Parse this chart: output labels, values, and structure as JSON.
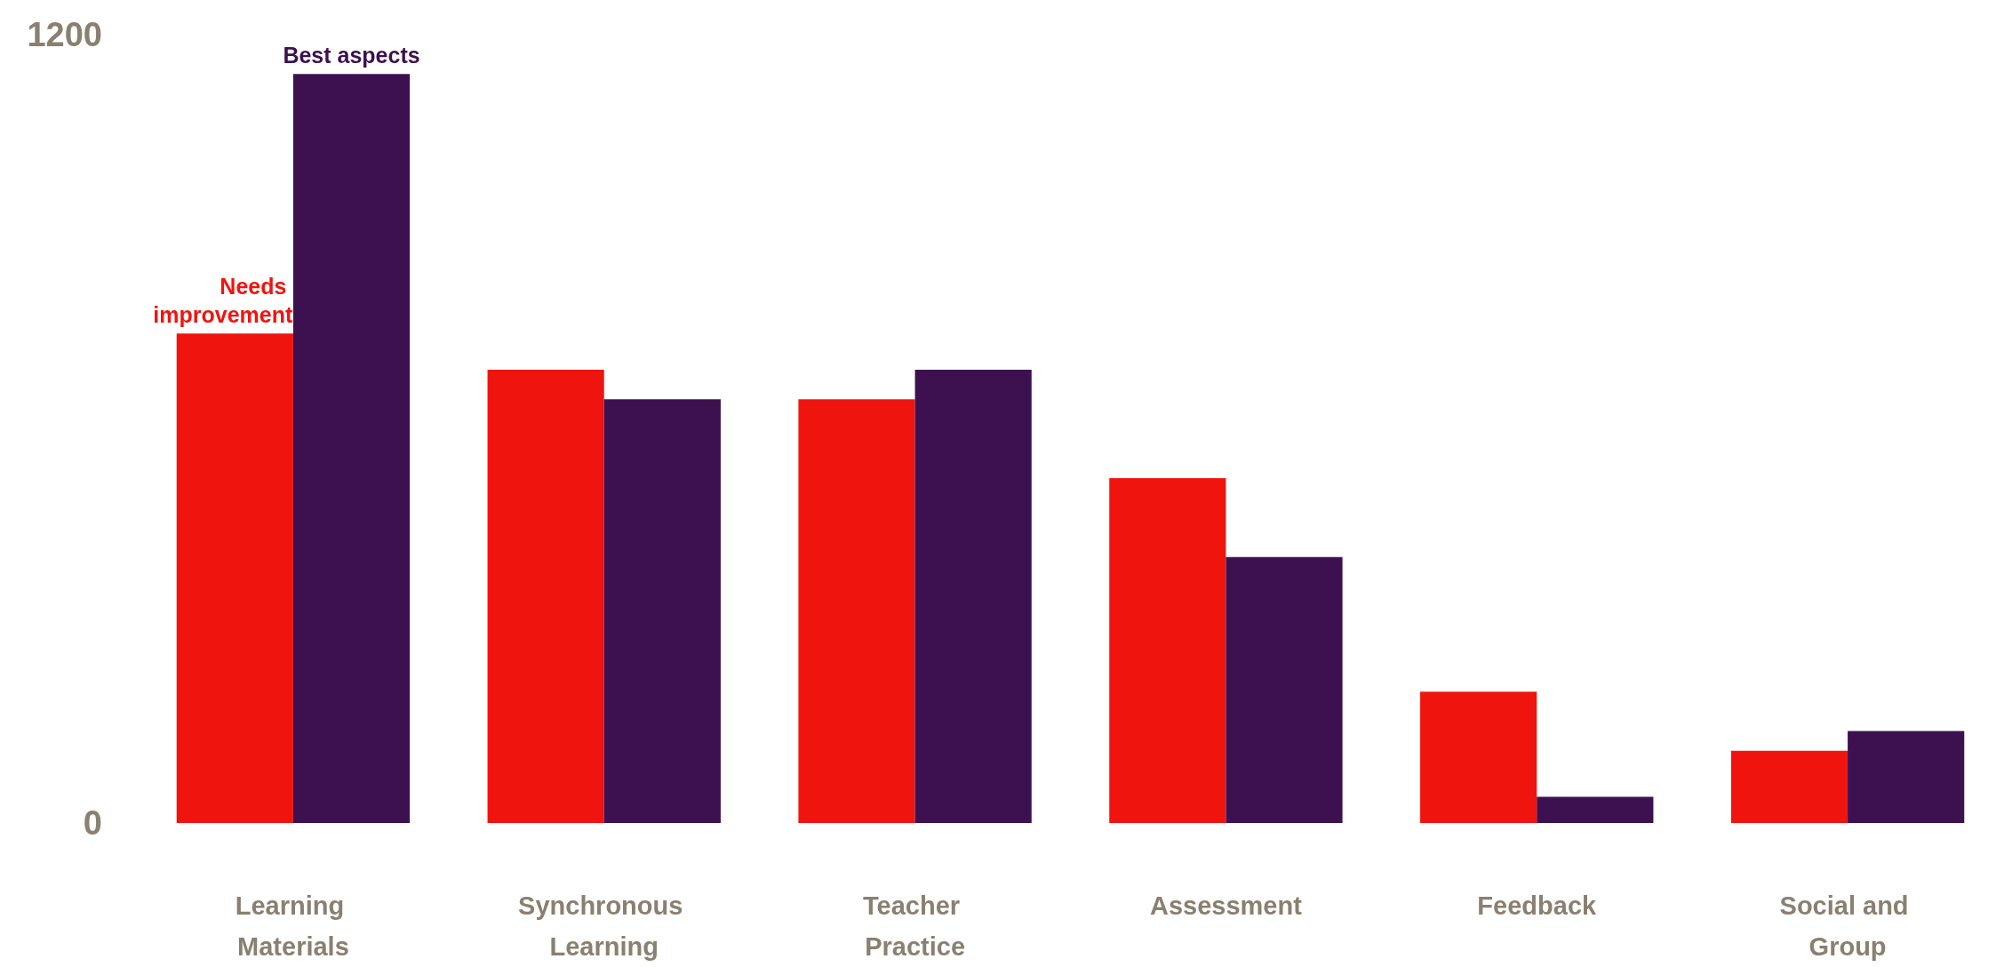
{
  "chart_data": {
    "type": "bar",
    "categories": [
      "Learning Materials",
      "Synchronous Learning",
      "Teacher Practice",
      "Assessment",
      "Feedback",
      "Social and Group"
    ],
    "series": [
      {
        "name": "Needs improvement",
        "color": "#f0140f",
        "values": [
          745,
          690,
          645,
          525,
          200,
          110
        ]
      },
      {
        "name": "Best aspects",
        "color": "#3d1150",
        "values": [
          1140,
          645,
          690,
          405,
          40,
          140
        ]
      }
    ],
    "ylim": [
      0,
      1200
    ],
    "yticks": [
      0,
      1200
    ]
  }
}
